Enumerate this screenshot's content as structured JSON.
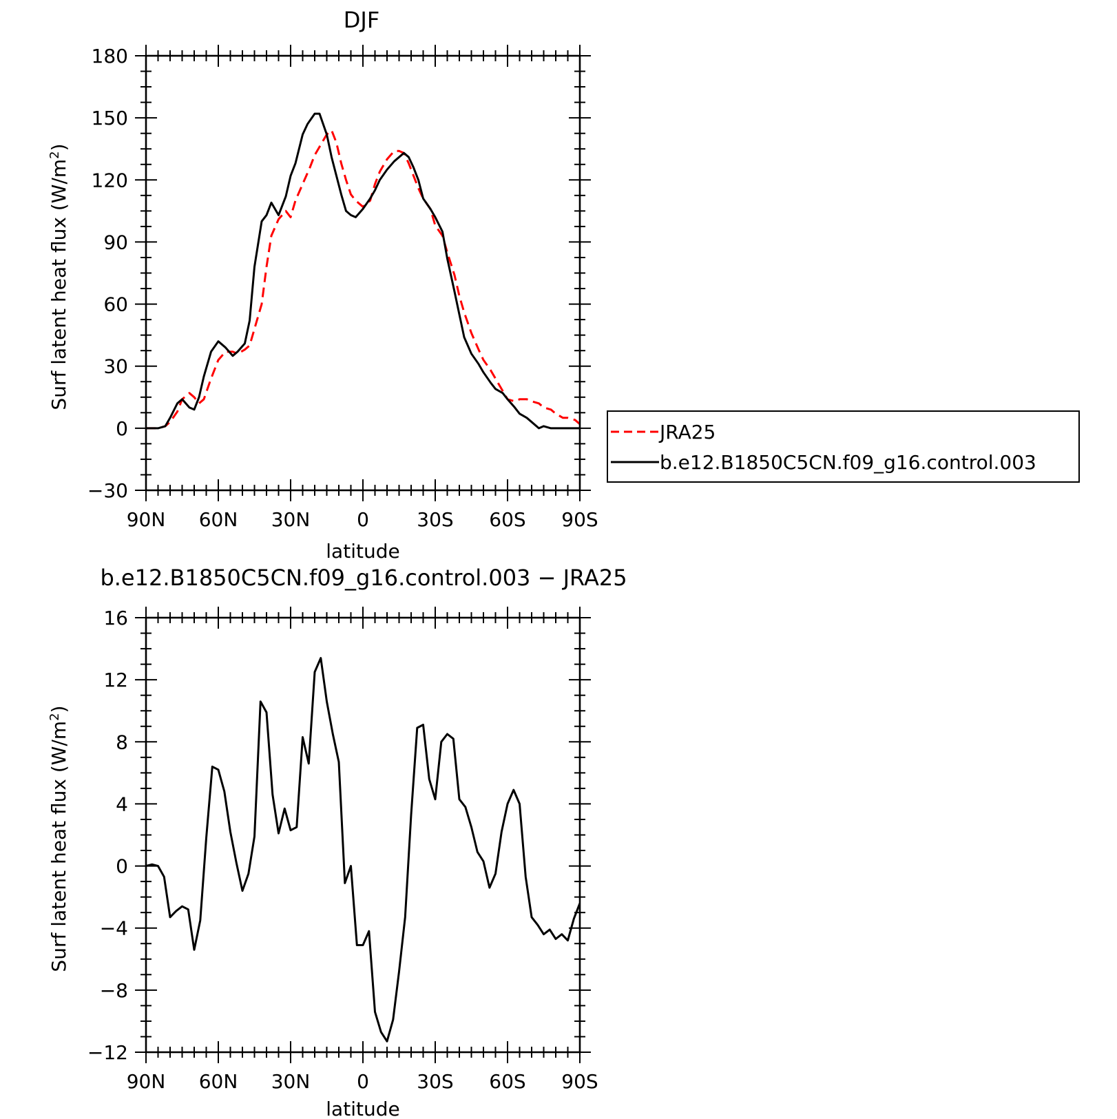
{
  "chart_data": [
    {
      "type": "line",
      "title": "DJF",
      "xlabel": "latitude",
      "ylabel": "Surf latent heat flux (W/m",
      "ylabel_sup": "2",
      "ylabel_end": ")",
      "xlim": [
        -90,
        90
      ],
      "ylim": [
        -30,
        180
      ],
      "xticks": [
        -90,
        -60,
        -30,
        0,
        30,
        60,
        90
      ],
      "xtick_labels": [
        "90N",
        "60N",
        "30N",
        "0",
        "30S",
        "60S",
        "90S"
      ],
      "yticks": [
        -30,
        0,
        30,
        60,
        90,
        120,
        150,
        180
      ],
      "ytick_labels": [
        "−30",
        "0",
        "30",
        "60",
        "90",
        "120",
        "150",
        "180"
      ],
      "legend": {
        "position": "right",
        "entries": [
          "JRA25",
          "b.e12.B1850C5CN.f09_g16.control.003"
        ]
      },
      "series": [
        {
          "name": "JRA25",
          "color": "#ff0000",
          "dashed": true,
          "x": [
            -90,
            -85,
            -82,
            -80,
            -77,
            -75,
            -72,
            -70,
            -68,
            -66,
            -63,
            -60,
            -57,
            -54,
            -52,
            -49,
            -47,
            -45,
            -42,
            -40,
            -38,
            -35,
            -32,
            -30,
            -28,
            -25,
            -22,
            -20,
            -18,
            -15,
            -13,
            -11,
            -9,
            -7,
            -5,
            -3,
            0,
            3,
            5,
            7,
            10,
            13,
            15,
            17,
            19,
            21,
            23,
            25,
            28,
            30,
            33,
            35,
            38,
            40,
            42,
            45,
            48,
            50,
            53,
            55,
            58,
            60,
            63,
            65,
            68,
            70,
            73,
            75,
            78,
            80,
            83,
            85,
            88,
            90
          ],
          "y": [
            0,
            0,
            1,
            3,
            8,
            14,
            17,
            15,
            12,
            14,
            24,
            33,
            37,
            37,
            36,
            38,
            40,
            48,
            60,
            78,
            93,
            101,
            105,
            102,
            110,
            118,
            126,
            132,
            136,
            142,
            144,
            138,
            128,
            120,
            113,
            110,
            107,
            110,
            118,
            124,
            130,
            134,
            134,
            133,
            128,
            122,
            116,
            111,
            106,
            98,
            93,
            85,
            74,
            64,
            56,
            46,
            38,
            33,
            28,
            24,
            18,
            14,
            13,
            14,
            14,
            13,
            12,
            10,
            9,
            7,
            5,
            5,
            4,
            2
          ]
        },
        {
          "name": "b.e12.B1850C5CN.f09_g16.control.003",
          "color": "#000000",
          "dashed": false,
          "x": [
            -90,
            -85,
            -82,
            -80,
            -77,
            -75,
            -72,
            -70,
            -68,
            -66,
            -63,
            -60,
            -57,
            -54,
            -52,
            -49,
            -47,
            -45,
            -42,
            -40,
            -38,
            -35,
            -32,
            -30,
            -28,
            -25,
            -23,
            -20,
            -18,
            -15,
            -13,
            -11,
            -9,
            -7,
            -5,
            -3,
            0,
            3,
            5,
            7,
            10,
            13,
            15,
            17,
            19,
            21,
            23,
            25,
            28,
            30,
            33,
            35,
            38,
            40,
            42,
            45,
            48,
            50,
            53,
            55,
            58,
            60,
            63,
            65,
            68,
            70,
            73,
            75,
            78,
            80,
            83,
            85,
            88,
            90
          ],
          "y": [
            0,
            0,
            1,
            5,
            12,
            14,
            10,
            9,
            15,
            25,
            37,
            42,
            39,
            35,
            37,
            41,
            52,
            78,
            100,
            103,
            109,
            103,
            112,
            122,
            128,
            142,
            147,
            152,
            152,
            142,
            131,
            122,
            113,
            105,
            103,
            102,
            106,
            111,
            115,
            120,
            125,
            129,
            131,
            133,
            131,
            126,
            120,
            111,
            106,
            102,
            95,
            82,
            66,
            55,
            44,
            36,
            31,
            27,
            22,
            19,
            17,
            14,
            10,
            7,
            5,
            3,
            0,
            1,
            0,
            0,
            0,
            0,
            0,
            0
          ]
        }
      ]
    },
    {
      "type": "line",
      "title": "b.e12.B1850C5CN.f09_g16.control.003 − JRA25",
      "xlabel": "latitude",
      "ylabel": "Surf latent heat flux (W/m",
      "ylabel_sup": "2",
      "ylabel_end": ")",
      "xlim": [
        -90,
        90
      ],
      "ylim": [
        -12,
        16
      ],
      "xticks": [
        -90,
        -60,
        -30,
        0,
        30,
        60,
        90
      ],
      "xtick_labels": [
        "90N",
        "60N",
        "30N",
        "0",
        "30S",
        "60S",
        "90S"
      ],
      "yticks": [
        -12,
        -8,
        -4,
        0,
        4,
        8,
        12,
        16
      ],
      "ytick_labels": [
        "−12",
        "−8",
        "−4",
        "0",
        "4",
        "8",
        "12",
        "16"
      ],
      "series": [
        {
          "color": "#000000",
          "dashed": false,
          "x": [
            -90,
            -87.5,
            -85,
            -82.5,
            -80,
            -77.5,
            -75,
            -72.5,
            -70,
            -67.5,
            -65,
            -62.5,
            -60,
            -57.5,
            -55,
            -52.5,
            -50,
            -47.5,
            -45,
            -42.5,
            -40,
            -37.5,
            -35,
            -32.5,
            -30,
            -27.5,
            -25,
            -22.5,
            -20,
            -17.5,
            -15,
            -12.5,
            -10,
            -7.5,
            -5,
            -2.5,
            0,
            2.5,
            5,
            7.5,
            10,
            12.5,
            15,
            17.5,
            20,
            22.5,
            25,
            27.5,
            30,
            32.5,
            35,
            37.5,
            40,
            42.5,
            45,
            47.5,
            50,
            52.5,
            55,
            57.5,
            60,
            62.5,
            65,
            67.5,
            70,
            72.5,
            75,
            77.5,
            80,
            82.5,
            85,
            87.5,
            90
          ],
          "y": [
            0,
            0.1,
            0,
            -0.7,
            -3.3,
            -2.9,
            -2.6,
            -2.8,
            -5.4,
            -3.5,
            1.8,
            6.4,
            6.2,
            4.8,
            2.2,
            0.2,
            -1.6,
            -0.5,
            1.9,
            10.6,
            9.9,
            4.6,
            2.1,
            3.7,
            2.3,
            2.5,
            8.3,
            6.6,
            12.5,
            13.4,
            10.6,
            8.5,
            6.7,
            -1.1,
            0,
            -5.1,
            -5.1,
            -4.2,
            -9.4,
            -10.7,
            -11.3,
            -9.9,
            -6.8,
            -3.3,
            3.3,
            8.9,
            9.1,
            5.6,
            4.3,
            8,
            8.5,
            8.2,
            4.3,
            3.8,
            2.5,
            0.9,
            0.3,
            -1.4,
            -0.5,
            2.2,
            4,
            4.9,
            4,
            -0.7,
            -3.3,
            -3.8,
            -4.4,
            -4.1,
            -4.7,
            -4.4,
            -4.8,
            -3.4,
            -2.4
          ]
        }
      ]
    }
  ]
}
